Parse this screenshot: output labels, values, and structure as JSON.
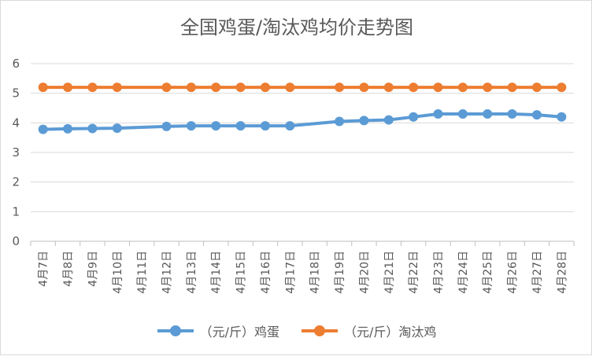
{
  "chart_data": {
    "type": "line",
    "title": "全国鸡蛋/淘汰鸡均价走势图",
    "categories": [
      "4月7日",
      "4月8日",
      "4月9日",
      "4月10日",
      "4月11日",
      "4月12日",
      "4月13日",
      "4月14日",
      "4月15日",
      "4月16日",
      "4月17日",
      "4月18日",
      "4月19日",
      "4月20日",
      "4月21日",
      "4月22日",
      "4月23日",
      "4月24日",
      "4月25日",
      "4月26日",
      "4月27日",
      "4月28日"
    ],
    "ylim": [
      0,
      6
    ],
    "yticks": [
      "0",
      "1",
      "2",
      "3",
      "4",
      "5",
      "6"
    ],
    "grid": true,
    "legend_position": "bottom",
    "series": [
      {
        "name": "（元/斤）鸡蛋",
        "color": "#5b9bd5",
        "values": [
          3.78,
          3.8,
          3.81,
          3.82,
          null,
          3.88,
          3.9,
          3.9,
          3.9,
          3.9,
          3.9,
          null,
          4.05,
          4.08,
          4.1,
          4.2,
          4.3,
          4.3,
          4.3,
          4.3,
          4.27,
          4.2
        ]
      },
      {
        "name": "（元/斤）淘汰鸡",
        "color": "#ed7d31",
        "values": [
          5.2,
          5.2,
          5.2,
          5.2,
          null,
          5.2,
          5.2,
          5.2,
          5.2,
          5.2,
          5.2,
          null,
          5.2,
          5.2,
          5.2,
          5.2,
          5.2,
          5.2,
          5.2,
          5.2,
          5.2,
          5.2
        ]
      }
    ]
  }
}
